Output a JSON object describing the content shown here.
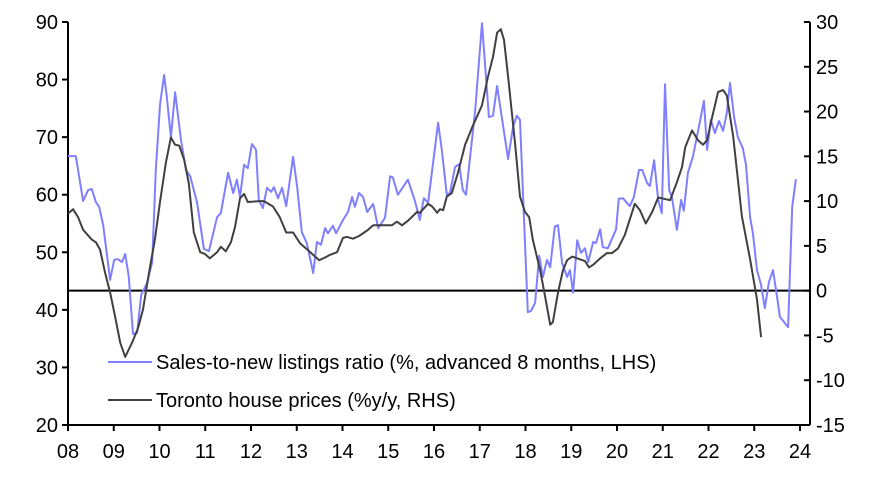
{
  "chart_data": {
    "type": "line",
    "title": "",
    "xlabel": "",
    "ylabel_left": "",
    "ylabel_right": "",
    "x_range": [
      2008,
      2024
    ],
    "x_ticks": [
      2008,
      2009,
      2010,
      2011,
      2012,
      2013,
      2014,
      2015,
      2016,
      2017,
      2018,
      2019,
      2020,
      2021,
      2022,
      2023,
      2024
    ],
    "x_tick_labels": [
      "08",
      "09",
      "10",
      "11",
      "12",
      "13",
      "14",
      "15",
      "16",
      "17",
      "18",
      "19",
      "20",
      "21",
      "22",
      "23",
      "24"
    ],
    "ylim_left": [
      20,
      90
    ],
    "y_ticks_left": [
      "20",
      "30",
      "40",
      "50",
      "60",
      "70",
      "80",
      "90"
    ],
    "ylim_right": [
      -15,
      30
    ],
    "y_ticks_right": [
      "-15",
      "-10",
      "-5",
      "0",
      "5",
      "10",
      "15",
      "20",
      "25",
      "30"
    ],
    "zero_line_right": 0,
    "grid": false,
    "legend_position": "bottom-left",
    "colors": {
      "sales": "#7f7fff",
      "prices": "#404040"
    },
    "series": [
      {
        "name": "Sales-to-new listings ratio (%, advanced 8 months, LHS)",
        "axis": "left",
        "points": [
          [
            2008.0,
            66.7
          ],
          [
            2008.17,
            66.7
          ],
          [
            2008.33,
            58.9
          ],
          [
            2008.44,
            60.8
          ],
          [
            2008.52,
            61
          ],
          [
            2008.61,
            58.7
          ],
          [
            2008.68,
            57.9
          ],
          [
            2008.77,
            54.7
          ],
          [
            2008.92,
            45.2
          ],
          [
            2009.01,
            48.7
          ],
          [
            2009.09,
            48.8
          ],
          [
            2009.18,
            48.3
          ],
          [
            2009.25,
            49.7
          ],
          [
            2009.33,
            45.7
          ],
          [
            2009.42,
            35.8
          ],
          [
            2009.51,
            36
          ],
          [
            2009.6,
            42.6
          ],
          [
            2009.73,
            44.7
          ],
          [
            2009.84,
            48.3
          ],
          [
            2009.92,
            64.3
          ],
          [
            2010.01,
            75.6
          ],
          [
            2010.1,
            80.8
          ],
          [
            2010.16,
            77
          ],
          [
            2010.25,
            70
          ],
          [
            2010.34,
            77.8
          ],
          [
            2010.47,
            69.5
          ],
          [
            2010.58,
            64.3
          ],
          [
            2010.67,
            63.2
          ],
          [
            2010.82,
            58.7
          ],
          [
            2010.97,
            50.6
          ],
          [
            2011.08,
            50.2
          ],
          [
            2011.26,
            56.1
          ],
          [
            2011.34,
            56.8
          ],
          [
            2011.5,
            63.8
          ],
          [
            2011.61,
            60.3
          ],
          [
            2011.69,
            62.6
          ],
          [
            2011.76,
            59.6
          ],
          [
            2011.85,
            65.2
          ],
          [
            2011.93,
            64.6
          ],
          [
            2012.02,
            68.8
          ],
          [
            2012.11,
            67.8
          ],
          [
            2012.17,
            59.1
          ],
          [
            2012.26,
            57.7
          ],
          [
            2012.35,
            61.2
          ],
          [
            2012.44,
            60.5
          ],
          [
            2012.5,
            61.3
          ],
          [
            2012.59,
            59.4
          ],
          [
            2012.68,
            61.2
          ],
          [
            2012.77,
            58
          ],
          [
            2012.92,
            66.6
          ],
          [
            2013.01,
            61.3
          ],
          [
            2013.11,
            53.5
          ],
          [
            2013.22,
            51.6
          ],
          [
            2013.36,
            46.4
          ],
          [
            2013.44,
            51.8
          ],
          [
            2013.53,
            51.3
          ],
          [
            2013.62,
            54.2
          ],
          [
            2013.68,
            53.3
          ],
          [
            2013.79,
            54.6
          ],
          [
            2013.86,
            53.3
          ],
          [
            2014.01,
            55.6
          ],
          [
            2014.12,
            57
          ],
          [
            2014.21,
            59.6
          ],
          [
            2014.27,
            57.9
          ],
          [
            2014.36,
            60.3
          ],
          [
            2014.45,
            59.6
          ],
          [
            2014.54,
            57
          ],
          [
            2014.67,
            58.4
          ],
          [
            2014.78,
            54.2
          ],
          [
            2014.93,
            56
          ],
          [
            2015.04,
            63.2
          ],
          [
            2015.1,
            63
          ],
          [
            2015.21,
            60
          ],
          [
            2015.43,
            62.6
          ],
          [
            2015.58,
            59
          ],
          [
            2015.69,
            55.6
          ],
          [
            2015.78,
            59.4
          ],
          [
            2015.87,
            58.6
          ],
          [
            2016.09,
            72.5
          ],
          [
            2016.17,
            67.8
          ],
          [
            2016.28,
            60
          ],
          [
            2016.35,
            60.3
          ],
          [
            2016.46,
            64.8
          ],
          [
            2016.55,
            65.3
          ],
          [
            2016.63,
            60.8
          ],
          [
            2016.7,
            60
          ],
          [
            2016.9,
            74.7
          ],
          [
            2017.05,
            89.8
          ],
          [
            2017.2,
            73.5
          ],
          [
            2017.29,
            73.7
          ],
          [
            2017.38,
            78.9
          ],
          [
            2017.49,
            73
          ],
          [
            2017.62,
            66.2
          ],
          [
            2017.73,
            71.8
          ],
          [
            2017.81,
            73.7
          ],
          [
            2017.88,
            73
          ],
          [
            2018.05,
            39.6
          ],
          [
            2018.12,
            39.8
          ],
          [
            2018.21,
            41.2
          ],
          [
            2018.3,
            49.4
          ],
          [
            2018.38,
            45.7
          ],
          [
            2018.47,
            48.7
          ],
          [
            2018.54,
            47.4
          ],
          [
            2018.64,
            54.5
          ],
          [
            2018.71,
            54.7
          ],
          [
            2018.8,
            48.1
          ],
          [
            2018.91,
            45.7
          ],
          [
            2018.97,
            46.9
          ],
          [
            2019.04,
            43
          ],
          [
            2019.13,
            52.1
          ],
          [
            2019.21,
            49.9
          ],
          [
            2019.3,
            50.7
          ],
          [
            2019.37,
            48.3
          ],
          [
            2019.48,
            51.8
          ],
          [
            2019.54,
            51.6
          ],
          [
            2019.63,
            54
          ],
          [
            2019.69,
            50.9
          ],
          [
            2019.8,
            50.7
          ],
          [
            2019.98,
            54
          ],
          [
            2020.04,
            59.3
          ],
          [
            2020.13,
            59.4
          ],
          [
            2020.28,
            58
          ],
          [
            2020.37,
            59.6
          ],
          [
            2020.48,
            64.3
          ],
          [
            2020.55,
            64.3
          ],
          [
            2020.66,
            62
          ],
          [
            2020.72,
            61.5
          ],
          [
            2020.81,
            66
          ],
          [
            2020.9,
            59.1
          ],
          [
            2020.98,
            56.8
          ],
          [
            2021.05,
            79.2
          ],
          [
            2021.14,
            60.8
          ],
          [
            2021.2,
            59.6
          ],
          [
            2021.31,
            53.9
          ],
          [
            2021.4,
            59.1
          ],
          [
            2021.46,
            57.2
          ],
          [
            2021.55,
            63.8
          ],
          [
            2021.66,
            66.6
          ],
          [
            2021.79,
            71.8
          ],
          [
            2021.9,
            76.3
          ],
          [
            2021.97,
            67.8
          ],
          [
            2022.05,
            73
          ],
          [
            2022.14,
            70.7
          ],
          [
            2022.23,
            72.8
          ],
          [
            2022.32,
            71.1
          ],
          [
            2022.4,
            74.2
          ],
          [
            2022.47,
            79.4
          ],
          [
            2022.56,
            73.5
          ],
          [
            2022.64,
            70
          ],
          [
            2022.75,
            68.1
          ],
          [
            2022.82,
            65.2
          ],
          [
            2022.91,
            56.1
          ],
          [
            2022.97,
            53.3
          ],
          [
            2023.06,
            46.9
          ],
          [
            2023.15,
            44.3
          ],
          [
            2023.23,
            40.3
          ],
          [
            2023.32,
            44.8
          ],
          [
            2023.41,
            46.9
          ],
          [
            2023.5,
            42.2
          ],
          [
            2023.56,
            38.8
          ],
          [
            2023.67,
            37.7
          ],
          [
            2023.74,
            37
          ],
          [
            2023.83,
            57.9
          ],
          [
            2023.91,
            62.7
          ]
        ]
      },
      {
        "name": "Toronto house prices (%y/y, RHS)",
        "axis": "right",
        "points": [
          [
            2008.0,
            8.6
          ],
          [
            2008.11,
            9.1
          ],
          [
            2008.22,
            8.2
          ],
          [
            2008.33,
            6.8
          ],
          [
            2008.52,
            5.7
          ],
          [
            2008.61,
            5.4
          ],
          [
            2008.7,
            4.6
          ],
          [
            2008.81,
            2
          ],
          [
            2008.92,
            -0.2
          ],
          [
            2009.03,
            -2.9
          ],
          [
            2009.14,
            -5.8
          ],
          [
            2009.25,
            -7.4
          ],
          [
            2009.4,
            -5.8
          ],
          [
            2009.53,
            -4.2
          ],
          [
            2009.64,
            -2.1
          ],
          [
            2009.77,
            2
          ],
          [
            2009.9,
            5.7
          ],
          [
            2010.01,
            9.9
          ],
          [
            2010.14,
            14.3
          ],
          [
            2010.25,
            17.1
          ],
          [
            2010.34,
            16.3
          ],
          [
            2010.43,
            16.2
          ],
          [
            2010.54,
            14.6
          ],
          [
            2010.64,
            12
          ],
          [
            2010.75,
            6.5
          ],
          [
            2010.89,
            4.3
          ],
          [
            2010.99,
            4.1
          ],
          [
            2011.1,
            3.6
          ],
          [
            2011.26,
            4.3
          ],
          [
            2011.34,
            4.9
          ],
          [
            2011.45,
            4.4
          ],
          [
            2011.56,
            5.4
          ],
          [
            2011.65,
            7.1
          ],
          [
            2011.76,
            10.3
          ],
          [
            2011.85,
            10.8
          ],
          [
            2011.93,
            9.9
          ],
          [
            2012.2,
            10
          ],
          [
            2012.28,
            10
          ],
          [
            2012.48,
            9.4
          ],
          [
            2012.63,
            8.2
          ],
          [
            2012.77,
            6.5
          ],
          [
            2012.92,
            6.5
          ],
          [
            2013.07,
            5.3
          ],
          [
            2013.25,
            4.5
          ],
          [
            2013.49,
            3.4
          ],
          [
            2013.62,
            3.7
          ],
          [
            2013.73,
            4
          ],
          [
            2013.88,
            4.3
          ],
          [
            2014.01,
            5.9
          ],
          [
            2014.1,
            6
          ],
          [
            2014.23,
            5.8
          ],
          [
            2014.36,
            6.1
          ],
          [
            2014.56,
            6.8
          ],
          [
            2014.67,
            7.3
          ],
          [
            2014.78,
            7.3
          ],
          [
            2015.08,
            7.3
          ],
          [
            2015.19,
            7.7
          ],
          [
            2015.3,
            7.3
          ],
          [
            2015.43,
            7.8
          ],
          [
            2015.63,
            8.8
          ],
          [
            2015.69,
            8.7
          ],
          [
            2015.87,
            9.7
          ],
          [
            2015.96,
            9.4
          ],
          [
            2016.07,
            8.7
          ],
          [
            2016.13,
            9.1
          ],
          [
            2016.2,
            9
          ],
          [
            2016.28,
            10.5
          ],
          [
            2016.39,
            10.9
          ],
          [
            2016.52,
            13.1
          ],
          [
            2016.68,
            16.3
          ],
          [
            2016.83,
            18.2
          ],
          [
            2017.05,
            20.7
          ],
          [
            2017.18,
            23.9
          ],
          [
            2017.29,
            26.1
          ],
          [
            2017.38,
            28.8
          ],
          [
            2017.46,
            29.2
          ],
          [
            2017.53,
            28
          ],
          [
            2017.62,
            23.9
          ],
          [
            2017.77,
            16.5
          ],
          [
            2017.88,
            10.5
          ],
          [
            2017.99,
            8.8
          ],
          [
            2018.08,
            8.2
          ],
          [
            2018.16,
            5.7
          ],
          [
            2018.32,
            2.3
          ],
          [
            2018.43,
            -0.7
          ],
          [
            2018.54,
            -3.8
          ],
          [
            2018.6,
            -3.5
          ],
          [
            2018.71,
            -0.2
          ],
          [
            2018.82,
            2.3
          ],
          [
            2018.91,
            3.4
          ],
          [
            2019.02,
            3.8
          ],
          [
            2019.19,
            3.5
          ],
          [
            2019.3,
            3.3
          ],
          [
            2019.39,
            2.6
          ],
          [
            2019.48,
            2.9
          ],
          [
            2019.63,
            3.6
          ],
          [
            2019.78,
            4.2
          ],
          [
            2019.89,
            4.2
          ],
          [
            2020.02,
            4.7
          ],
          [
            2020.17,
            6.2
          ],
          [
            2020.39,
            9.7
          ],
          [
            2020.5,
            9
          ],
          [
            2020.63,
            7.5
          ],
          [
            2020.77,
            8.8
          ],
          [
            2020.9,
            10.4
          ],
          [
            2021.16,
            10.1
          ],
          [
            2021.31,
            12.1
          ],
          [
            2021.42,
            13.8
          ],
          [
            2021.49,
            16
          ],
          [
            2021.64,
            17.9
          ],
          [
            2021.77,
            16.8
          ],
          [
            2021.88,
            16.3
          ],
          [
            2021.97,
            16.8
          ],
          [
            2022.08,
            19.4
          ],
          [
            2022.21,
            22.2
          ],
          [
            2022.32,
            22.4
          ],
          [
            2022.4,
            21.8
          ],
          [
            2022.54,
            17.2
          ],
          [
            2022.73,
            8.3
          ],
          [
            2022.91,
            3.5
          ],
          [
            2023.06,
            -1
          ],
          [
            2023.15,
            -5.2
          ]
        ]
      }
    ]
  }
}
